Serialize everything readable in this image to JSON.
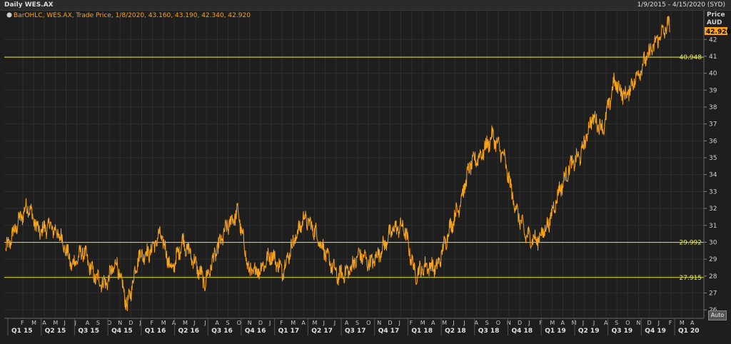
{
  "header": {
    "title": "Daily WES.AX",
    "date_range": "1/9/2015 - 4/15/2020 (SYD)"
  },
  "legend": {
    "text": "BarOHLC, WES.AX, Trade Price, 1/8/2020, 43.160, 43.190, 42.340, 42.920"
  },
  "axis": {
    "y_title_1": "Price",
    "y_title_2": "AUD",
    "last_price": "42.920",
    "auto_label": "Auto"
  },
  "colors": {
    "price": "#f7a21b",
    "hline": "#e6e63a",
    "background": "#1e1e1e",
    "grid": "#2e2e2e"
  },
  "chart_data": {
    "type": "line",
    "title": "Daily WES.AX",
    "ylabel": "Price AUD",
    "ylim": [
      25.5,
      43.7
    ],
    "yticks": [
      26,
      27,
      28,
      29,
      30,
      31,
      32,
      33,
      34,
      35,
      36,
      37,
      38,
      39,
      40,
      41,
      42
    ],
    "last_value": 42.92,
    "horizontal_lines": [
      {
        "value": 40.948,
        "label": "40.948"
      },
      {
        "value": 29.992,
        "label": "29.992"
      },
      {
        "value": 27.915,
        "label": "27.915"
      }
    ],
    "x": [
      "2015-01",
      "2015-02",
      "2015-03",
      "2015-04",
      "2015-05",
      "2015-06",
      "2015-07",
      "2015-08",
      "2015-09",
      "2015-10",
      "2015-11",
      "2015-12",
      "2016-01",
      "2016-02",
      "2016-03",
      "2016-04",
      "2016-05",
      "2016-06",
      "2016-07",
      "2016-08",
      "2016-09",
      "2016-10",
      "2016-11",
      "2016-12",
      "2017-01",
      "2017-02",
      "2017-03",
      "2017-04",
      "2017-05",
      "2017-06",
      "2017-07",
      "2017-08",
      "2017-09",
      "2017-10",
      "2017-11",
      "2017-12",
      "2018-01",
      "2018-02",
      "2018-03",
      "2018-04",
      "2018-05",
      "2018-06",
      "2018-07",
      "2018-08",
      "2018-09",
      "2018-10",
      "2018-11",
      "2018-12",
      "2019-01",
      "2019-02",
      "2019-03",
      "2019-04",
      "2019-05",
      "2019-06",
      "2019-07",
      "2019-08",
      "2019-09",
      "2019-10",
      "2019-11",
      "2019-12",
      "2020-01"
    ],
    "values": [
      29.5,
      31.0,
      32.2,
      30.6,
      31.0,
      30.3,
      28.6,
      29.5,
      28.0,
      27.5,
      28.8,
      26.2,
      29.2,
      29.4,
      30.5,
      28.3,
      30.1,
      28.9,
      27.6,
      29.4,
      30.9,
      31.8,
      28.2,
      28.4,
      29.3,
      28.3,
      30.0,
      31.5,
      30.6,
      29.2,
      28.0,
      28.3,
      29.3,
      28.7,
      29.6,
      30.8,
      30.9,
      28.1,
      28.6,
      28.5,
      30.6,
      32.2,
      34.6,
      35.2,
      36.3,
      35.1,
      32.2,
      30.4,
      30.1,
      31.0,
      33.0,
      34.5,
      35.2,
      37.4,
      36.7,
      39.5,
      38.6,
      39.8,
      41.0,
      42.1,
      42.9
    ],
    "x_months": [
      "F",
      "M",
      "A",
      "M",
      "J",
      "J",
      "A",
      "S",
      "O",
      "N",
      "D",
      "J",
      "F",
      "M",
      "A",
      "M",
      "J",
      "J",
      "A",
      "S",
      "O",
      "N",
      "D",
      "J",
      "F",
      "M",
      "A",
      "M",
      "J",
      "J",
      "A",
      "S",
      "O",
      "N",
      "D",
      "J",
      "F",
      "M",
      "A",
      "M",
      "J",
      "J",
      "A",
      "S",
      "O",
      "N",
      "D",
      "J",
      "F",
      "M",
      "A",
      "M",
      "J",
      "J",
      "A",
      "S",
      "O",
      "N",
      "D",
      "J",
      "F",
      "M",
      "A"
    ],
    "x_quarters": [
      "Q1 15",
      "Q2 15",
      "Q3 15",
      "Q4 15",
      "Q1 16",
      "Q2 16",
      "Q3 16",
      "Q4 16",
      "Q1 17",
      "Q2 17",
      "Q3 17",
      "Q4 17",
      "Q1 18",
      "Q2 18",
      "Q3 18",
      "Q4 18",
      "Q1 19",
      "Q2 19",
      "Q3 19",
      "Q4 19",
      "Q1 20"
    ]
  }
}
